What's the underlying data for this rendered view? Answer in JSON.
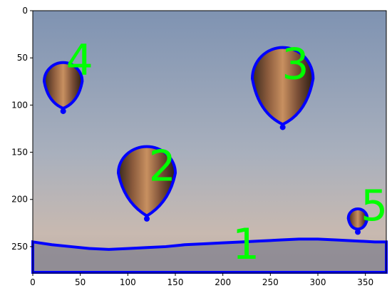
{
  "chart_data": {
    "type": "image",
    "title": "",
    "xlabel": "",
    "ylabel": "",
    "xlim": [
      0,
      372
    ],
    "ylim": [
      278,
      0
    ],
    "y_inverted": true,
    "grid": false,
    "x_ticks": [
      0,
      50,
      100,
      150,
      200,
      250,
      300,
      350
    ],
    "y_ticks": [
      0,
      50,
      100,
      150,
      200,
      250
    ],
    "image_description": "sky with hot air balloons, contours drawn in blue, numeric labels in green",
    "ground_contour": [
      [
        0,
        245
      ],
      [
        20,
        248
      ],
      [
        40,
        250
      ],
      [
        60,
        252
      ],
      [
        80,
        253
      ],
      [
        100,
        252
      ],
      [
        120,
        251
      ],
      [
        140,
        250
      ],
      [
        160,
        248
      ],
      [
        180,
        247
      ],
      [
        200,
        246
      ],
      [
        220,
        245
      ],
      [
        240,
        244
      ],
      [
        260,
        243
      ],
      [
        280,
        242
      ],
      [
        300,
        242
      ],
      [
        320,
        243
      ],
      [
        340,
        244
      ],
      [
        360,
        245
      ],
      [
        372,
        245
      ]
    ],
    "balloons": [
      {
        "label": "1",
        "label_x": 210,
        "label_y": 263,
        "cx": 0,
        "cy": 0,
        "rx": 0,
        "ry": 0
      },
      {
        "label": "2",
        "label_x": 122,
        "label_y": 180,
        "cx": 120,
        "cy": 172,
        "rx": 30,
        "ry": 28,
        "tip_y": 222
      },
      {
        "label": "3",
        "label_x": 262,
        "label_y": 72,
        "cx": 263,
        "cy": 72,
        "rx": 32,
        "ry": 33,
        "tip_y": 125
      },
      {
        "label": "4",
        "label_x": 35,
        "label_y": 68,
        "cx": 32,
        "cy": 75,
        "rx": 20,
        "ry": 20,
        "tip_y": 108
      },
      {
        "label": "5",
        "label_x": 345,
        "label_y": 222,
        "cx": 342,
        "cy": 220,
        "rx": 10,
        "ry": 10,
        "tip_y": 236
      }
    ],
    "colors": {
      "contour": "#0000ff",
      "label": "#00ff00",
      "sky_top": "#7f93b2",
      "sky_bottom": "#c8b9b0",
      "ground": "#8a8792"
    }
  }
}
